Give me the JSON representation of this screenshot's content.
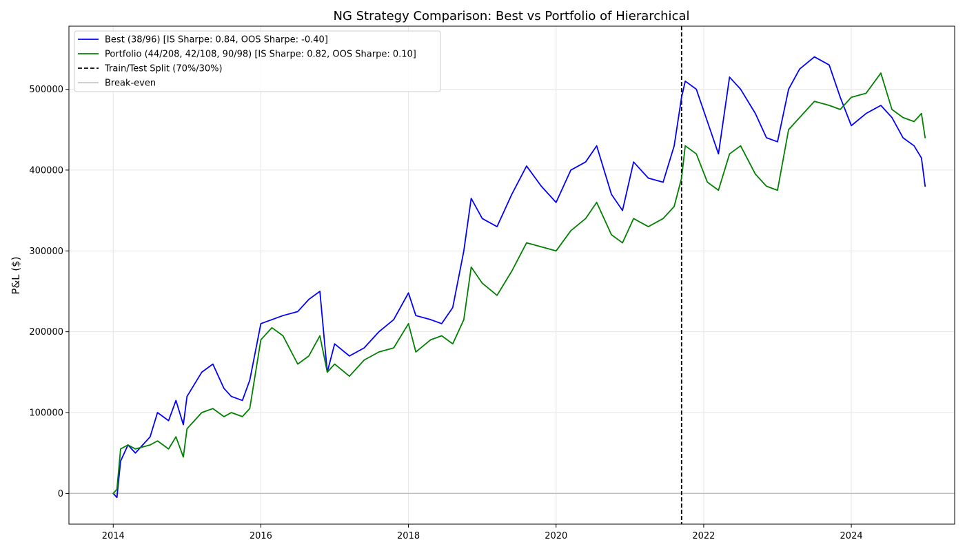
{
  "chart_data": {
    "type": "line",
    "title": "NG Strategy Comparison: Best vs Portfolio of Hierarchical",
    "xlabel": "",
    "ylabel": "P&L ($)",
    "xlim": [
      2013.4,
      2025.4
    ],
    "ylim": [
      -38000,
      578000
    ],
    "x_ticks": [
      2014,
      2016,
      2018,
      2020,
      2022,
      2024
    ],
    "x_tick_labels": [
      "2014",
      "2016",
      "2018",
      "2020",
      "2022",
      "2024"
    ],
    "y_ticks": [
      0,
      100000,
      200000,
      300000,
      400000,
      500000
    ],
    "y_tick_labels": [
      "0",
      "100000",
      "200000",
      "300000",
      "400000",
      "500000"
    ],
    "grid": true,
    "legend_position": "upper-left",
    "colors": {
      "best": "#0000ff",
      "portfolio": "#008000",
      "split": "#000000",
      "breakeven": "#bfbfbf",
      "grid": "#e6e6e6"
    },
    "split_x": 2021.7,
    "breakeven_y": 0,
    "series": [
      {
        "name": "Best (38/96) [IS Sharpe: 0.84, OOS Sharpe: -0.40]",
        "color": "#0000ff",
        "x": [
          2014.0,
          2014.05,
          2014.1,
          2014.2,
          2014.3,
          2014.5,
          2014.6,
          2014.75,
          2014.85,
          2014.95,
          2015.0,
          2015.2,
          2015.35,
          2015.5,
          2015.6,
          2015.75,
          2015.85,
          2016.0,
          2016.15,
          2016.3,
          2016.5,
          2016.65,
          2016.8,
          2016.9,
          2017.0,
          2017.2,
          2017.4,
          2017.6,
          2017.8,
          2018.0,
          2018.1,
          2018.3,
          2018.45,
          2018.6,
          2018.75,
          2018.85,
          2019.0,
          2019.2,
          2019.4,
          2019.6,
          2019.8,
          2020.0,
          2020.2,
          2020.4,
          2020.55,
          2020.75,
          2020.9,
          2021.05,
          2021.25,
          2021.45,
          2021.6,
          2021.7,
          2021.75,
          2021.9,
          2022.05,
          2022.2,
          2022.35,
          2022.5,
          2022.7,
          2022.85,
          2023.0,
          2023.15,
          2023.3,
          2023.5,
          2023.7,
          2023.85,
          2024.0,
          2024.2,
          2024.4,
          2024.55,
          2024.7,
          2024.85,
          2024.95,
          2025.0
        ],
        "y": [
          0,
          -5000,
          40000,
          60000,
          50000,
          70000,
          100000,
          90000,
          115000,
          85000,
          120000,
          150000,
          160000,
          130000,
          120000,
          115000,
          140000,
          210000,
          215000,
          220000,
          225000,
          240000,
          250000,
          150000,
          185000,
          170000,
          180000,
          200000,
          215000,
          248000,
          220000,
          215000,
          210000,
          230000,
          300000,
          365000,
          340000,
          330000,
          370000,
          405000,
          380000,
          360000,
          400000,
          410000,
          430000,
          370000,
          350000,
          410000,
          390000,
          385000,
          430000,
          490000,
          510000,
          500000,
          460000,
          420000,
          515000,
          500000,
          470000,
          440000,
          435000,
          500000,
          525000,
          540000,
          530000,
          490000,
          455000,
          470000,
          480000,
          465000,
          440000,
          430000,
          415000,
          380000
        ]
      },
      {
        "name": "Portfolio (44/208, 42/108, 90/98) [IS Sharpe: 0.82, OOS Sharpe: 0.10]",
        "color": "#008000",
        "x": [
          2014.0,
          2014.05,
          2014.1,
          2014.2,
          2014.3,
          2014.5,
          2014.6,
          2014.75,
          2014.85,
          2014.95,
          2015.0,
          2015.2,
          2015.35,
          2015.5,
          2015.6,
          2015.75,
          2015.85,
          2016.0,
          2016.15,
          2016.3,
          2016.5,
          2016.65,
          2016.8,
          2016.9,
          2017.0,
          2017.2,
          2017.4,
          2017.6,
          2017.8,
          2018.0,
          2018.1,
          2018.3,
          2018.45,
          2018.6,
          2018.75,
          2018.85,
          2019.0,
          2019.2,
          2019.4,
          2019.6,
          2019.8,
          2020.0,
          2020.2,
          2020.4,
          2020.55,
          2020.75,
          2020.9,
          2021.05,
          2021.25,
          2021.45,
          2021.6,
          2021.7,
          2021.75,
          2021.9,
          2022.05,
          2022.2,
          2022.35,
          2022.5,
          2022.7,
          2022.85,
          2023.0,
          2023.15,
          2023.3,
          2023.5,
          2023.7,
          2023.85,
          2024.0,
          2024.2,
          2024.4,
          2024.55,
          2024.7,
          2024.85,
          2024.95,
          2025.0
        ],
        "y": [
          0,
          5000,
          55000,
          60000,
          55000,
          60000,
          65000,
          55000,
          70000,
          45000,
          80000,
          100000,
          105000,
          95000,
          100000,
          95000,
          105000,
          190000,
          205000,
          195000,
          160000,
          170000,
          195000,
          150000,
          160000,
          145000,
          165000,
          175000,
          180000,
          210000,
          175000,
          190000,
          195000,
          185000,
          215000,
          280000,
          260000,
          245000,
          275000,
          310000,
          305000,
          300000,
          325000,
          340000,
          360000,
          320000,
          310000,
          340000,
          330000,
          340000,
          355000,
          390000,
          430000,
          420000,
          385000,
          375000,
          420000,
          430000,
          395000,
          380000,
          375000,
          450000,
          465000,
          485000,
          480000,
          475000,
          490000,
          495000,
          520000,
          475000,
          465000,
          460000,
          470000,
          440000
        ]
      },
      {
        "name": "Train/Test Split (70%/30%)",
        "color": "#000000",
        "style": "dashed"
      },
      {
        "name": "Break-even",
        "color": "#bfbfbf"
      }
    ]
  }
}
